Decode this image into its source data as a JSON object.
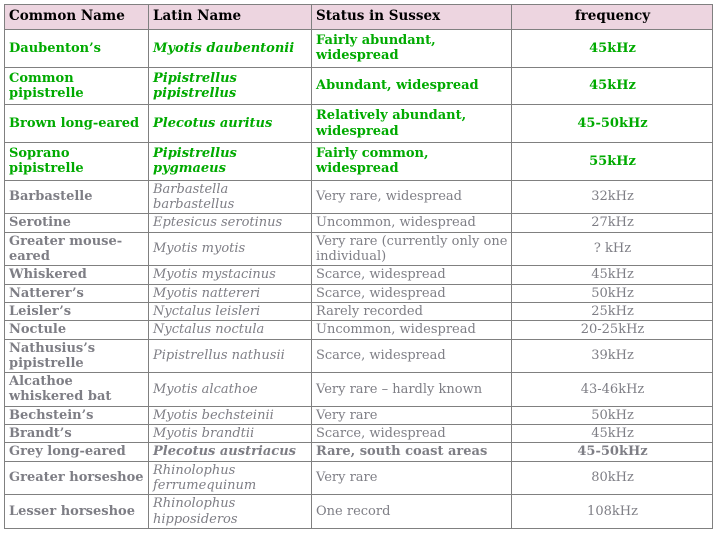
{
  "colors": {
    "green_text": "#00AA00",
    "gray_text": "#7E7E85",
    "header_background": "#EDD5E0",
    "border": "#808080",
    "header_text": "#000000"
  },
  "table": {
    "columns": [
      {
        "label": "Common Name"
      },
      {
        "label": "Latin Name"
      },
      {
        "label": "Status in Sussex"
      },
      {
        "label": "frequency"
      }
    ],
    "rows": [
      {
        "common": "Daubenton’s",
        "latin": "Myotis daubentonii",
        "status": "Fairly abundant, widespread",
        "frequency": "45kHz",
        "style": "green"
      },
      {
        "common": "Common pipistrelle",
        "latin": "Pipistrellus pipistrellus",
        "status": "Abundant, widespread",
        "frequency": "45kHz",
        "style": "green"
      },
      {
        "common": "Brown long-eared",
        "latin": "Plecotus auritus",
        "status": "Relatively abundant, widespread",
        "frequency": "45-50kHz",
        "style": "green"
      },
      {
        "common": "Soprano pipistrelle",
        "latin": "Pipistrellus pygmaeus",
        "status": "Fairly common, widespread",
        "frequency": "55kHz",
        "style": "green"
      },
      {
        "common": "Barbastelle",
        "latin": "Barbastella barbastellus",
        "status": "Very rare, widespread",
        "frequency": "32kHz",
        "style": "gray"
      },
      {
        "common": "Serotine",
        "latin": "Eptesicus serotinus",
        "status": "Uncommon, widespread",
        "frequency": "27kHz",
        "style": "gray"
      },
      {
        "common": "Greater mouse-eared",
        "latin": "Myotis myotis",
        "status": "Very rare (currently only one individual)",
        "frequency": "? kHz",
        "style": "gray"
      },
      {
        "common": "Whiskered",
        "latin": "Myotis mystacinus",
        "status": "Scarce, widespread",
        "frequency": "45kHz",
        "style": "gray"
      },
      {
        "common": "Natterer’s",
        "latin": "Myotis nattereri",
        "status": "Scarce, widespread",
        "frequency": "50kHz",
        "style": "gray"
      },
      {
        "common": "Leisler’s",
        "latin": "Nyctalus leisleri",
        "status": "Rarely recorded",
        "frequency": "25kHz",
        "style": "gray"
      },
      {
        "common": "Noctule",
        "latin": "Nyctalus noctula",
        "status": "Uncommon, widespread",
        "frequency": "20-25kHz",
        "style": "gray"
      },
      {
        "common": "Nathusius’s pipistrelle",
        "latin": "Pipistrellus nathusii",
        "status": "Scarce, widespread",
        "frequency": "39kHz",
        "style": "gray"
      },
      {
        "common": "Alcathoe whiskered bat",
        "latin": "Myotis alcathoe",
        "status": "Very rare – hardly known",
        "frequency": "43-46kHz",
        "style": "gray"
      },
      {
        "common": "Bechstein’s",
        "latin": "Myotis bechsteinii",
        "status": "Very rare",
        "frequency": "50kHz",
        "style": "gray"
      },
      {
        "common": "Brandt’s",
        "latin": "Myotis brandtii",
        "status": "Scarce, widespread",
        "frequency": "45kHz",
        "style": "gray"
      },
      {
        "common": "Grey long-eared",
        "latin": "Plecotus austriacus",
        "status": "Rare, south coast areas",
        "frequency": "45-50kHz",
        "style": "gray-bold"
      },
      {
        "common": "Greater horseshoe",
        "latin": "Rhinolophus ferrumequinum",
        "status": "Very rare",
        "frequency": "80kHz",
        "style": "gray"
      },
      {
        "common": "Lesser horseshoe",
        "latin": "Rhinolophus hipposideros",
        "status": "One record",
        "frequency": "108kHz",
        "style": "gray"
      }
    ]
  }
}
